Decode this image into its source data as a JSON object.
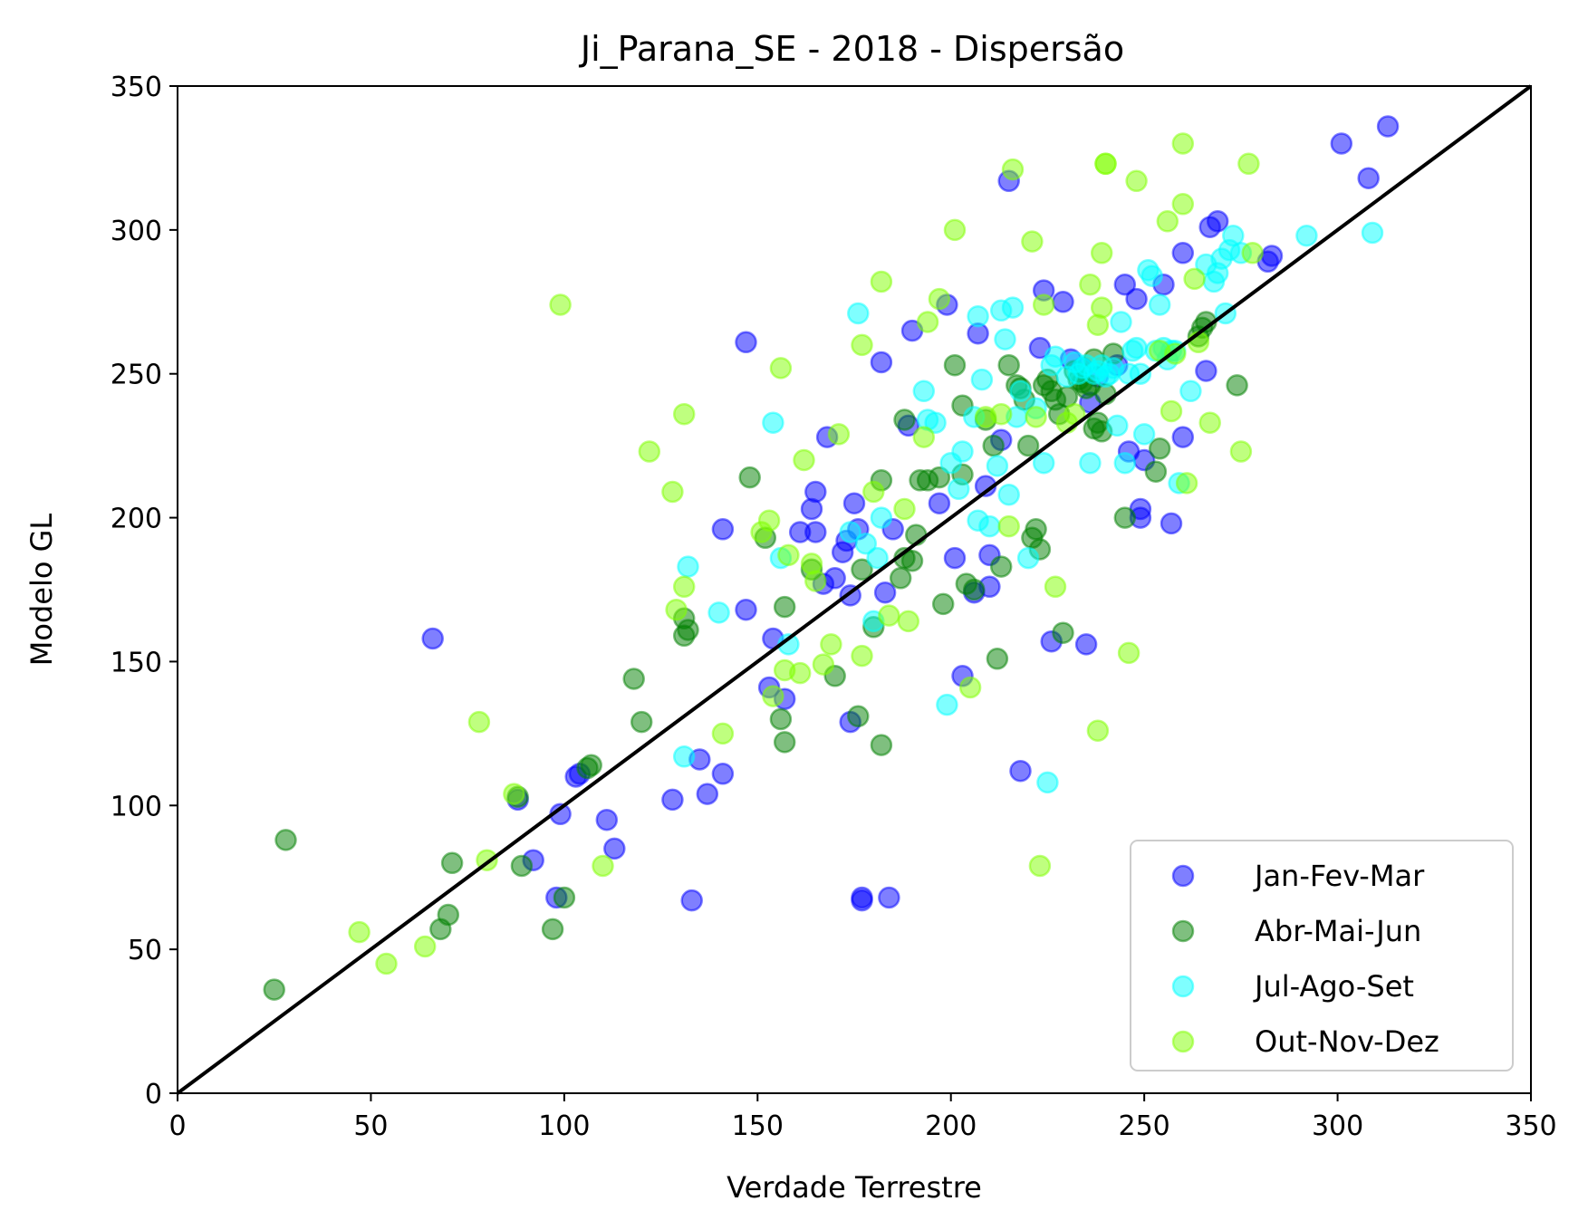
{
  "chart_data": {
    "type": "scatter",
    "title": "Ji_Parana_SE - 2018 - Dispersão",
    "xlabel": "Verdade Terrestre",
    "ylabel": "Modelo GL",
    "xlim": [
      0,
      350
    ],
    "ylim": [
      0,
      350
    ],
    "xticks": [
      "0",
      "50",
      "100",
      "150",
      "200",
      "250",
      "300",
      "350"
    ],
    "yticks": [
      "0",
      "50",
      "100",
      "150",
      "200",
      "250",
      "300",
      "350"
    ],
    "grid": false,
    "legend_position": "lower-right",
    "reference_line": {
      "from": [
        0,
        0
      ],
      "to": [
        350,
        350
      ],
      "color": "#000000"
    },
    "series": [
      {
        "name": "Jan-Fev-Mar",
        "color": "#0000ff",
        "points": [
          [
            66,
            158
          ],
          [
            88,
            102
          ],
          [
            92,
            81
          ],
          [
            98,
            68
          ],
          [
            99,
            97
          ],
          [
            103,
            110
          ],
          [
            104,
            111
          ],
          [
            111,
            95
          ],
          [
            113,
            85
          ],
          [
            128,
            102
          ],
          [
            133,
            67
          ],
          [
            135,
            116
          ],
          [
            137,
            104
          ],
          [
            141,
            111
          ],
          [
            141,
            196
          ],
          [
            147,
            168
          ],
          [
            147,
            261
          ],
          [
            153,
            141
          ],
          [
            154,
            158
          ],
          [
            157,
            137
          ],
          [
            161,
            195
          ],
          [
            164,
            203
          ],
          [
            165,
            209
          ],
          [
            165,
            195
          ],
          [
            167,
            177
          ],
          [
            168,
            228
          ],
          [
            170,
            179
          ],
          [
            172,
            188
          ],
          [
            173,
            192
          ],
          [
            174,
            173
          ],
          [
            174,
            129
          ],
          [
            175,
            205
          ],
          [
            176,
            196
          ],
          [
            177,
            67
          ],
          [
            182,
            254
          ],
          [
            183,
            174
          ],
          [
            184,
            68
          ],
          [
            185,
            196
          ],
          [
            189,
            232
          ],
          [
            190,
            265
          ],
          [
            197,
            205
          ],
          [
            199,
            274
          ],
          [
            201,
            186
          ],
          [
            203,
            145
          ],
          [
            206,
            174
          ],
          [
            207,
            264
          ],
          [
            209,
            211
          ],
          [
            210,
            187
          ],
          [
            210,
            176
          ],
          [
            213,
            227
          ],
          [
            215,
            317
          ],
          [
            223,
            259
          ],
          [
            224,
            279
          ],
          [
            226,
            157
          ],
          [
            229,
            275
          ],
          [
            231,
            255
          ],
          [
            234,
            252
          ],
          [
            235,
            156
          ],
          [
            236,
            240
          ],
          [
            238,
            249
          ],
          [
            243,
            253
          ],
          [
            245,
            281
          ],
          [
            246,
            223
          ],
          [
            248,
            276
          ],
          [
            249,
            200
          ],
          [
            249,
            203
          ],
          [
            250,
            220
          ],
          [
            255,
            281
          ],
          [
            257,
            198
          ],
          [
            260,
            228
          ],
          [
            260,
            292
          ],
          [
            266,
            251
          ],
          [
            267,
            301
          ],
          [
            269,
            303
          ],
          [
            282,
            289
          ],
          [
            283,
            291
          ],
          [
            301,
            330
          ],
          [
            308,
            318
          ],
          [
            313,
            336
          ],
          [
            218,
            112
          ],
          [
            177,
            68
          ]
        ]
      },
      {
        "name": "Abr-Mai-Jun",
        "color": "#008000",
        "points": [
          [
            25,
            36
          ],
          [
            28,
            88
          ],
          [
            68,
            57
          ],
          [
            70,
            62
          ],
          [
            71,
            80
          ],
          [
            88,
            103
          ],
          [
            89,
            79
          ],
          [
            97,
            57
          ],
          [
            100,
            68
          ],
          [
            106,
            113
          ],
          [
            107,
            114
          ],
          [
            118,
            144
          ],
          [
            120,
            129
          ],
          [
            131,
            159
          ],
          [
            131,
            165
          ],
          [
            132,
            161
          ],
          [
            148,
            214
          ],
          [
            152,
            193
          ],
          [
            156,
            130
          ],
          [
            157,
            122
          ],
          [
            157,
            169
          ],
          [
            164,
            182
          ],
          [
            170,
            145
          ],
          [
            176,
            131
          ],
          [
            177,
            182
          ],
          [
            180,
            162
          ],
          [
            182,
            213
          ],
          [
            182,
            121
          ],
          [
            187,
            179
          ],
          [
            188,
            234
          ],
          [
            188,
            186
          ],
          [
            190,
            185
          ],
          [
            191,
            194
          ],
          [
            192,
            213
          ],
          [
            194,
            213
          ],
          [
            197,
            214
          ],
          [
            198,
            170
          ],
          [
            201,
            253
          ],
          [
            203,
            239
          ],
          [
            203,
            215
          ],
          [
            204,
            177
          ],
          [
            206,
            175
          ],
          [
            209,
            234
          ],
          [
            211,
            225
          ],
          [
            212,
            151
          ],
          [
            213,
            183
          ],
          [
            215,
            253
          ],
          [
            217,
            246
          ],
          [
            218,
            245
          ],
          [
            219,
            241
          ],
          [
            220,
            225
          ],
          [
            221,
            193
          ],
          [
            222,
            196
          ],
          [
            223,
            189
          ],
          [
            224,
            246
          ],
          [
            225,
            248
          ],
          [
            226,
            244
          ],
          [
            227,
            241
          ],
          [
            228,
            236
          ],
          [
            229,
            160
          ],
          [
            230,
            242
          ],
          [
            232,
            251
          ],
          [
            233,
            248
          ],
          [
            234,
            247
          ],
          [
            235,
            245
          ],
          [
            236,
            246
          ],
          [
            237,
            255
          ],
          [
            238,
            233
          ],
          [
            239,
            230
          ],
          [
            240,
            243
          ],
          [
            242,
            257
          ],
          [
            245,
            200
          ],
          [
            253,
            216
          ],
          [
            254,
            224
          ],
          [
            264,
            263
          ],
          [
            265,
            266
          ],
          [
            266,
            268
          ],
          [
            274,
            246
          ],
          [
            237,
            231
          ]
        ]
      },
      {
        "name": "Jul-Ago-Set",
        "color": "#00ffff",
        "points": [
          [
            131,
            117
          ],
          [
            132,
            183
          ],
          [
            140,
            167
          ],
          [
            154,
            233
          ],
          [
            156,
            186
          ],
          [
            158,
            156
          ],
          [
            174,
            195
          ],
          [
            176,
            271
          ],
          [
            178,
            191
          ],
          [
            180,
            164
          ],
          [
            181,
            186
          ],
          [
            182,
            200
          ],
          [
            193,
            244
          ],
          [
            194,
            234
          ],
          [
            196,
            233
          ],
          [
            199,
            135
          ],
          [
            200,
            219
          ],
          [
            202,
            210
          ],
          [
            203,
            223
          ],
          [
            206,
            235
          ],
          [
            207,
            270
          ],
          [
            207,
            199
          ],
          [
            208,
            248
          ],
          [
            210,
            197
          ],
          [
            212,
            218
          ],
          [
            213,
            272
          ],
          [
            214,
            262
          ],
          [
            215,
            208
          ],
          [
            216,
            273
          ],
          [
            217,
            235
          ],
          [
            218,
            244
          ],
          [
            220,
            186
          ],
          [
            222,
            238
          ],
          [
            224,
            219
          ],
          [
            225,
            108
          ],
          [
            226,
            253
          ],
          [
            227,
            256
          ],
          [
            230,
            249
          ],
          [
            232,
            254
          ],
          [
            233,
            250
          ],
          [
            234,
            252
          ],
          [
            235,
            253
          ],
          [
            236,
            219
          ],
          [
            237,
            250
          ],
          [
            238,
            251
          ],
          [
            239,
            253
          ],
          [
            240,
            249
          ],
          [
            241,
            250
          ],
          [
            242,
            252
          ],
          [
            243,
            232
          ],
          [
            244,
            268
          ],
          [
            245,
            219
          ],
          [
            246,
            250
          ],
          [
            247,
            258
          ],
          [
            248,
            259
          ],
          [
            249,
            250
          ],
          [
            250,
            229
          ],
          [
            251,
            286
          ],
          [
            252,
            284
          ],
          [
            253,
            258
          ],
          [
            254,
            274
          ],
          [
            255,
            259
          ],
          [
            256,
            255
          ],
          [
            257,
            258
          ],
          [
            258,
            258
          ],
          [
            259,
            212
          ],
          [
            262,
            244
          ],
          [
            266,
            288
          ],
          [
            268,
            282
          ],
          [
            269,
            285
          ],
          [
            270,
            290
          ],
          [
            271,
            271
          ],
          [
            272,
            293
          ],
          [
            273,
            298
          ],
          [
            275,
            292
          ],
          [
            292,
            298
          ],
          [
            309,
            299
          ]
        ]
      },
      {
        "name": "Out-Nov-Dez",
        "color": "#7fff00",
        "points": [
          [
            47,
            56
          ],
          [
            54,
            45
          ],
          [
            64,
            51
          ],
          [
            78,
            129
          ],
          [
            80,
            81
          ],
          [
            87,
            104
          ],
          [
            99,
            274
          ],
          [
            110,
            79
          ],
          [
            122,
            223
          ],
          [
            128,
            209
          ],
          [
            129,
            168
          ],
          [
            131,
            176
          ],
          [
            131,
            236
          ],
          [
            141,
            125
          ],
          [
            151,
            195
          ],
          [
            153,
            199
          ],
          [
            154,
            138
          ],
          [
            156,
            252
          ],
          [
            157,
            147
          ],
          [
            158,
            187
          ],
          [
            161,
            146
          ],
          [
            162,
            220
          ],
          [
            164,
            184
          ],
          [
            165,
            178
          ],
          [
            167,
            149
          ],
          [
            169,
            156
          ],
          [
            171,
            229
          ],
          [
            177,
            260
          ],
          [
            177,
            152
          ],
          [
            180,
            209
          ],
          [
            182,
            282
          ],
          [
            184,
            166
          ],
          [
            188,
            203
          ],
          [
            189,
            164
          ],
          [
            193,
            228
          ],
          [
            194,
            268
          ],
          [
            197,
            276
          ],
          [
            201,
            300
          ],
          [
            205,
            141
          ],
          [
            209,
            235
          ],
          [
            213,
            236
          ],
          [
            215,
            197
          ],
          [
            221,
            296
          ],
          [
            222,
            235
          ],
          [
            223,
            79
          ],
          [
            224,
            274
          ],
          [
            227,
            176
          ],
          [
            230,
            233
          ],
          [
            232,
            236
          ],
          [
            236,
            281
          ],
          [
            238,
            126
          ],
          [
            238,
            267
          ],
          [
            239,
            273
          ],
          [
            239,
            292
          ],
          [
            240,
            323
          ],
          [
            246,
            153
          ],
          [
            248,
            317
          ],
          [
            254,
            258
          ],
          [
            256,
            303
          ],
          [
            257,
            237
          ],
          [
            260,
            309
          ],
          [
            260,
            330
          ],
          [
            261,
            212
          ],
          [
            263,
            283
          ],
          [
            267,
            233
          ],
          [
            275,
            223
          ],
          [
            277,
            323
          ],
          [
            278,
            292
          ],
          [
            216,
            321
          ],
          [
            240,
            323
          ],
          [
            258,
            257
          ],
          [
            264,
            261
          ]
        ]
      }
    ]
  }
}
